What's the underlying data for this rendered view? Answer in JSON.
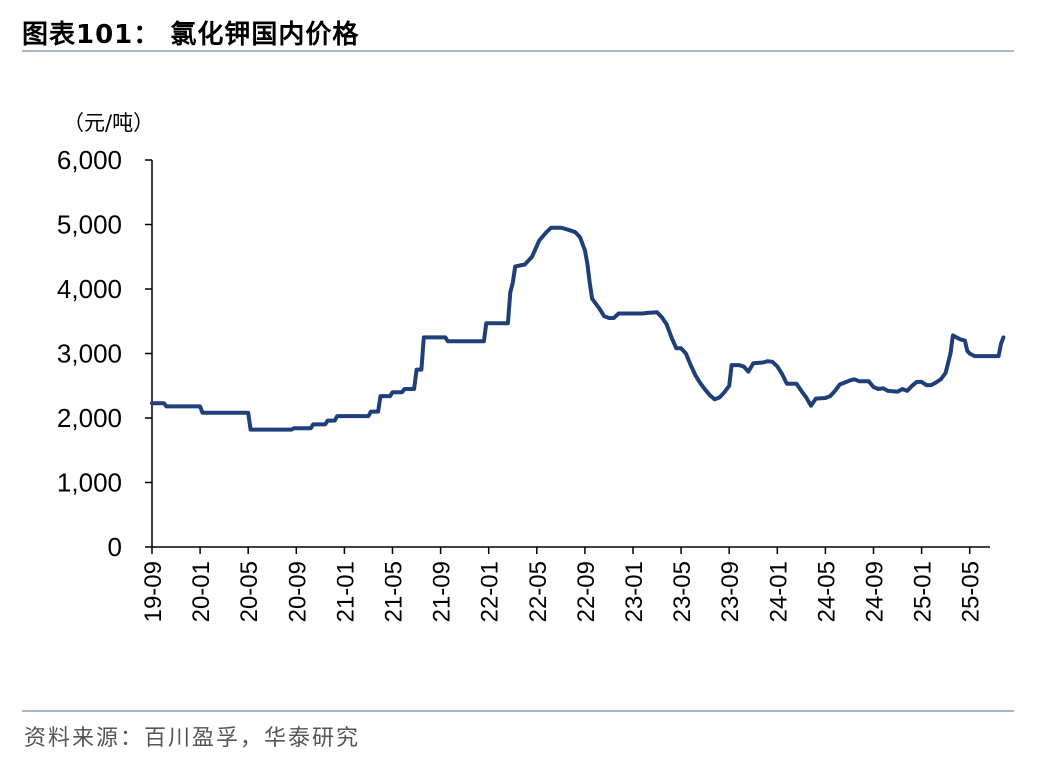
{
  "header": {
    "title": "图表101：  氯化钾国内价格"
  },
  "footer": {
    "source": "资料来源：百川盈孚，华泰研究"
  },
  "chart_data": {
    "type": "line",
    "unit_label": "（元/吨）",
    "ylim": [
      0,
      6000
    ],
    "yticks": [
      0,
      1000,
      2000,
      3000,
      4000,
      5000,
      6000
    ],
    "ytick_labels": [
      "0",
      "1,000",
      "2,000",
      "3,000",
      "4,000",
      "5,000",
      "6,000"
    ],
    "xtick_labels": [
      "19-09",
      "20-01",
      "20-05",
      "20-09",
      "21-01",
      "21-05",
      "21-09",
      "22-01",
      "22-05",
      "22-09",
      "23-01",
      "23-05",
      "23-09",
      "24-01",
      "24-05",
      "24-09",
      "25-01",
      "25-05"
    ],
    "x_unit": "month",
    "grid": false,
    "line_color": "#1f3f7a",
    "series": [
      {
        "values": [
          [
            0,
            2230
          ],
          [
            0.25,
            2230
          ],
          [
            0.3,
            2180
          ],
          [
            1.0,
            2180
          ],
          [
            1.05,
            2080
          ],
          [
            2.0,
            2080
          ],
          [
            2.05,
            1820
          ],
          [
            2.9,
            1820
          ],
          [
            2.95,
            1840
          ],
          [
            3.3,
            1840
          ],
          [
            3.35,
            1900
          ],
          [
            3.6,
            1900
          ],
          [
            3.65,
            1960
          ],
          [
            3.8,
            1960
          ],
          [
            3.85,
            2030
          ],
          [
            4.5,
            2030
          ],
          [
            4.55,
            2100
          ],
          [
            4.7,
            2100
          ],
          [
            4.75,
            2340
          ],
          [
            4.95,
            2340
          ],
          [
            5.0,
            2400
          ],
          [
            5.2,
            2400
          ],
          [
            5.25,
            2450
          ],
          [
            5.45,
            2450
          ],
          [
            5.5,
            2750
          ],
          [
            5.6,
            2750
          ],
          [
            5.65,
            3250
          ],
          [
            6.1,
            3250
          ],
          [
            6.15,
            3190
          ],
          [
            6.9,
            3190
          ],
          [
            6.95,
            3470
          ],
          [
            7.4,
            3470
          ],
          [
            7.45,
            3950
          ],
          [
            7.5,
            4100
          ],
          [
            7.55,
            4350
          ],
          [
            7.75,
            4380
          ],
          [
            7.9,
            4500
          ],
          [
            8.05,
            4750
          ],
          [
            8.2,
            4880
          ],
          [
            8.3,
            4950
          ],
          [
            8.5,
            4950
          ],
          [
            8.65,
            4920
          ],
          [
            8.8,
            4880
          ],
          [
            8.9,
            4800
          ],
          [
            9.0,
            4600
          ],
          [
            9.05,
            4400
          ],
          [
            9.1,
            4100
          ],
          [
            9.15,
            3850
          ],
          [
            9.3,
            3700
          ],
          [
            9.4,
            3580
          ],
          [
            9.5,
            3550
          ],
          [
            9.6,
            3550
          ],
          [
            9.7,
            3620
          ],
          [
            10.2,
            3620
          ],
          [
            10.3,
            3630
          ],
          [
            10.5,
            3640
          ],
          [
            10.6,
            3560
          ],
          [
            10.7,
            3450
          ],
          [
            10.8,
            3250
          ],
          [
            10.9,
            3080
          ],
          [
            11.0,
            3080
          ],
          [
            11.1,
            3000
          ],
          [
            11.2,
            2820
          ],
          [
            11.3,
            2660
          ],
          [
            11.4,
            2540
          ],
          [
            11.5,
            2440
          ],
          [
            11.6,
            2350
          ],
          [
            11.7,
            2290
          ],
          [
            11.8,
            2320
          ],
          [
            11.9,
            2400
          ],
          [
            12.0,
            2500
          ],
          [
            12.05,
            2820
          ],
          [
            12.2,
            2820
          ],
          [
            12.3,
            2800
          ],
          [
            12.4,
            2720
          ],
          [
            12.5,
            2850
          ],
          [
            12.7,
            2860
          ],
          [
            12.8,
            2880
          ],
          [
            12.9,
            2870
          ],
          [
            13.0,
            2800
          ],
          [
            13.1,
            2680
          ],
          [
            13.2,
            2530
          ],
          [
            13.4,
            2530
          ],
          [
            13.5,
            2420
          ],
          [
            13.6,
            2320
          ],
          [
            13.7,
            2190
          ],
          [
            13.8,
            2300
          ],
          [
            14.0,
            2310
          ],
          [
            14.1,
            2340
          ],
          [
            14.2,
            2420
          ],
          [
            14.3,
            2520
          ],
          [
            14.5,
            2580
          ],
          [
            14.6,
            2600
          ],
          [
            14.7,
            2570
          ],
          [
            14.9,
            2570
          ],
          [
            15.0,
            2480
          ],
          [
            15.1,
            2450
          ],
          [
            15.2,
            2460
          ],
          [
            15.3,
            2420
          ],
          [
            15.5,
            2410
          ],
          [
            15.6,
            2450
          ],
          [
            15.7,
            2420
          ],
          [
            15.8,
            2500
          ],
          [
            15.9,
            2560
          ],
          [
            16.0,
            2560
          ],
          [
            16.1,
            2510
          ],
          [
            16.2,
            2510
          ],
          [
            16.3,
            2550
          ],
          [
            16.4,
            2600
          ],
          [
            16.5,
            2700
          ],
          [
            16.6,
            3000
          ],
          [
            16.65,
            3280
          ],
          [
            16.7,
            3260
          ],
          [
            16.8,
            3220
          ],
          [
            16.9,
            3200
          ],
          [
            16.95,
            3040
          ],
          [
            17.0,
            3000
          ],
          [
            17.1,
            2960
          ],
          [
            17.5,
            2960
          ],
          [
            17.6,
            2960
          ],
          [
            17.65,
            3150
          ],
          [
            17.7,
            3250
          ]
        ]
      }
    ]
  }
}
